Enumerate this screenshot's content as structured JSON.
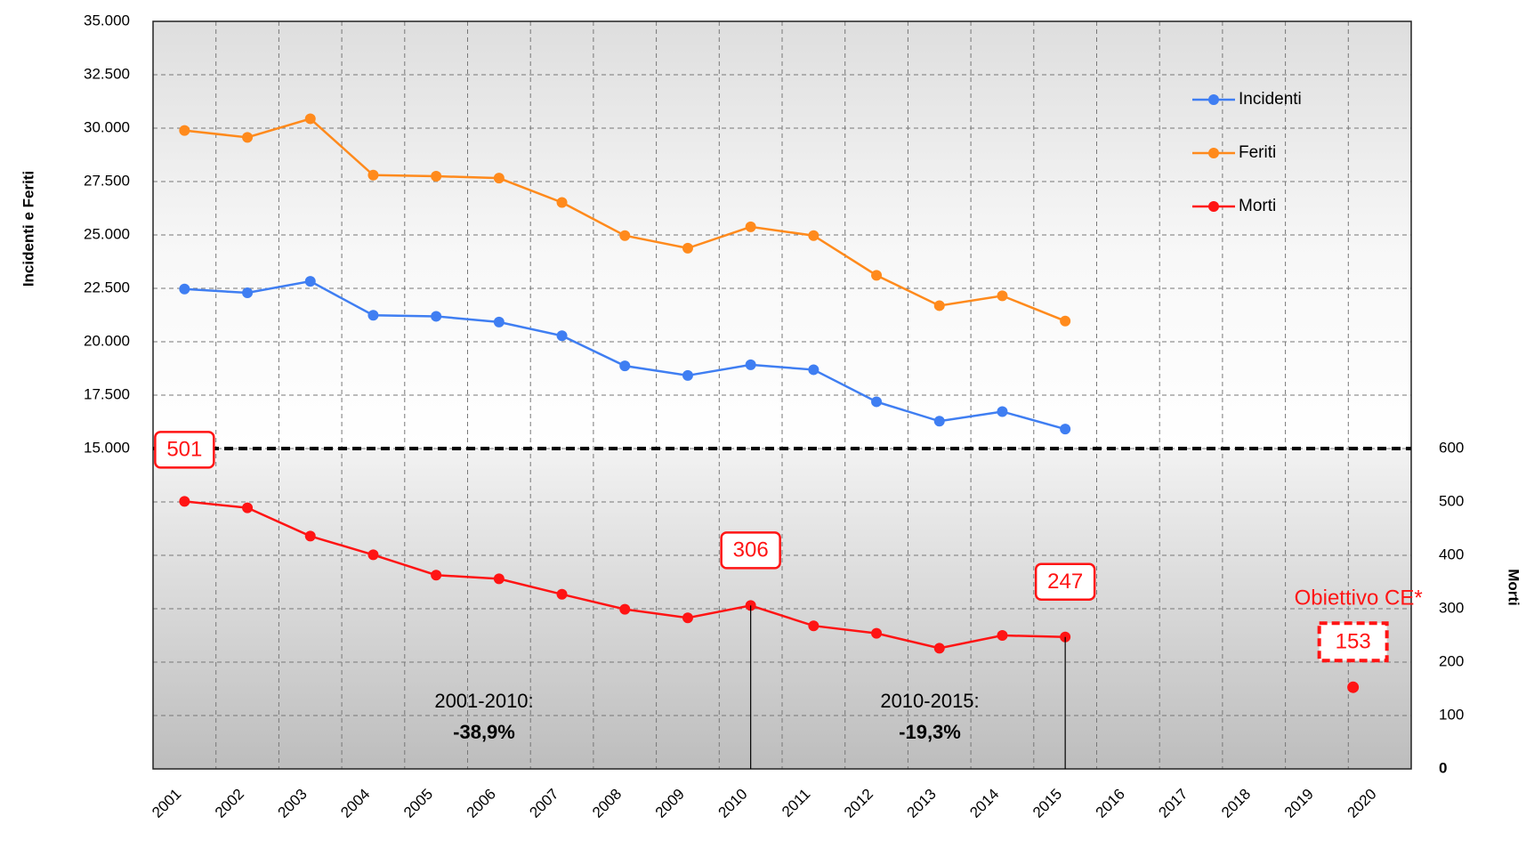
{
  "chart_data": {
    "type": "line",
    "y_title": "Incidenti e Feriti",
    "y2_title": "Morti",
    "categories": [
      "2001",
      "2002",
      "2003",
      "2004",
      "2005",
      "2006",
      "2007",
      "2008",
      "2009",
      "2010",
      "2011",
      "2012",
      "2013",
      "2014",
      "2015",
      "2016",
      "2017",
      "2018",
      "2019",
      "2020"
    ],
    "series": [
      {
        "name": "Incidenti",
        "color": "#3f7ef2",
        "values": [
          22470,
          22290,
          22830,
          21240,
          21190,
          20920,
          20280,
          18870,
          18420,
          18920,
          18690,
          17190,
          16280,
          16730,
          15910,
          null,
          null,
          null,
          null,
          null
        ]
      },
      {
        "name": "Feriti",
        "color": "#ff8a1c",
        "values": [
          29890,
          29570,
          30440,
          27800,
          27750,
          27660,
          26520,
          24970,
          24380,
          25380,
          24970,
          23110,
          21690,
          22150,
          20970,
          null,
          null,
          null,
          null,
          null
        ]
      },
      {
        "name": "Morti",
        "color": "#ff1414",
        "axis": "y2",
        "values": [
          501,
          489,
          436,
          401,
          363,
          356,
          327,
          299,
          283,
          306,
          268,
          254,
          226,
          250,
          247,
          null,
          null,
          null,
          null,
          null
        ],
        "value_labels": [
          "501",
          null,
          null,
          null,
          null,
          null,
          null,
          null,
          null,
          "306",
          null,
          null,
          null,
          null,
          "247",
          null,
          null,
          null,
          null,
          null
        ]
      }
    ],
    "target": {
      "label": "Obiettivo CE*",
      "category": "2020",
      "value": 153,
      "color": "#ff1414"
    },
    "annotations": [
      "2001-2010:",
      "-38,9%",
      "2010-2015:",
      "-19,3%"
    ],
    "ylim": [
      15000,
      35000
    ],
    "yticks": [
      {
        "value": 15000,
        "label": "15.000"
      },
      {
        "value": 17500,
        "label": "17.500"
      },
      {
        "value": 20000,
        "label": "20.000"
      },
      {
        "value": 22500,
        "label": "22.500"
      },
      {
        "value": 25000,
        "label": "25.000"
      },
      {
        "value": 27500,
        "label": "27.500"
      },
      {
        "value": 30000,
        "label": "30.000"
      },
      {
        "value": 32500,
        "label": "32.500"
      },
      {
        "value": 35000,
        "label": "35.000"
      }
    ],
    "y2lim": [
      0,
      600
    ],
    "y2ticks": [
      0,
      100,
      200,
      300,
      400,
      500,
      600
    ],
    "grid": true,
    "legend": "upper right"
  }
}
